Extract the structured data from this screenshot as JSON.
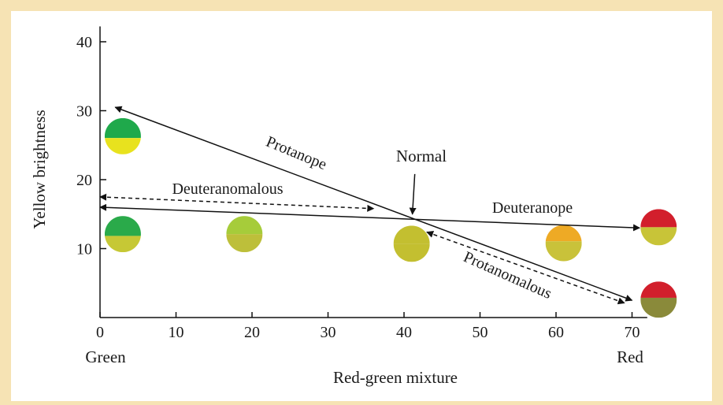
{
  "chart_data": {
    "type": "line",
    "xlabel": "Red-green mixture",
    "ylabel": "Yellow brightness",
    "x_end_labels": {
      "left": "Green",
      "right": "Red"
    },
    "xlim": [
      0,
      72
    ],
    "ylim": [
      0,
      42
    ],
    "xticks": [
      0,
      10,
      20,
      30,
      40,
      50,
      60,
      70
    ],
    "yticks": [
      10,
      20,
      30,
      40
    ],
    "grid": false,
    "normal_point": {
      "x": 41,
      "y": 14.3,
      "label": "Normal"
    },
    "lines": [
      {
        "name": "Protanope",
        "style": "solid",
        "from": {
          "x": 2,
          "y": 30.5
        },
        "to": {
          "x": 70,
          "y": 2.5
        }
      },
      {
        "name": "Deuteranope",
        "style": "solid",
        "from": {
          "x": 0,
          "y": 16
        },
        "to": {
          "x": 71,
          "y": 13
        }
      },
      {
        "name": "Deuteranomalous",
        "style": "dashed",
        "from": {
          "x": 0,
          "y": 17.5
        },
        "to": {
          "x": 36,
          "y": 15.8
        }
      },
      {
        "name": "Protanomalous",
        "style": "dashed",
        "from": {
          "x": 43,
          "y": 12.4
        },
        "to": {
          "x": 69,
          "y": 2.1
        }
      }
    ],
    "swatches": [
      {
        "x": 3,
        "y": 26.3,
        "top": "#1fa94b",
        "bottom": "#e8e21e",
        "split": 0.55
      },
      {
        "x": 3,
        "y": 12.1,
        "top": "#2aaa4a",
        "bottom": "#c6c835",
        "split": 0.55
      },
      {
        "x": 19,
        "y": 12.1,
        "top": "#a6cc3a",
        "bottom": "#bdbf3a",
        "split": 0.5
      },
      {
        "x": 41,
        "y": 10.7,
        "top": "#c3bf30",
        "bottom": "#c3bf30",
        "split": 0.5
      },
      {
        "x": 61,
        "y": 10.8,
        "top": "#eeaa25",
        "bottom": "#c9c23a",
        "split": 0.45
      },
      {
        "x": 73.5,
        "y": 13.1,
        "top": "#d21f2c",
        "bottom": "#c8c438",
        "split": 0.5
      },
      {
        "x": 73.5,
        "y": 2.6,
        "top": "#d21f2c",
        "bottom": "#8a8a3a",
        "split": 0.45
      }
    ]
  }
}
